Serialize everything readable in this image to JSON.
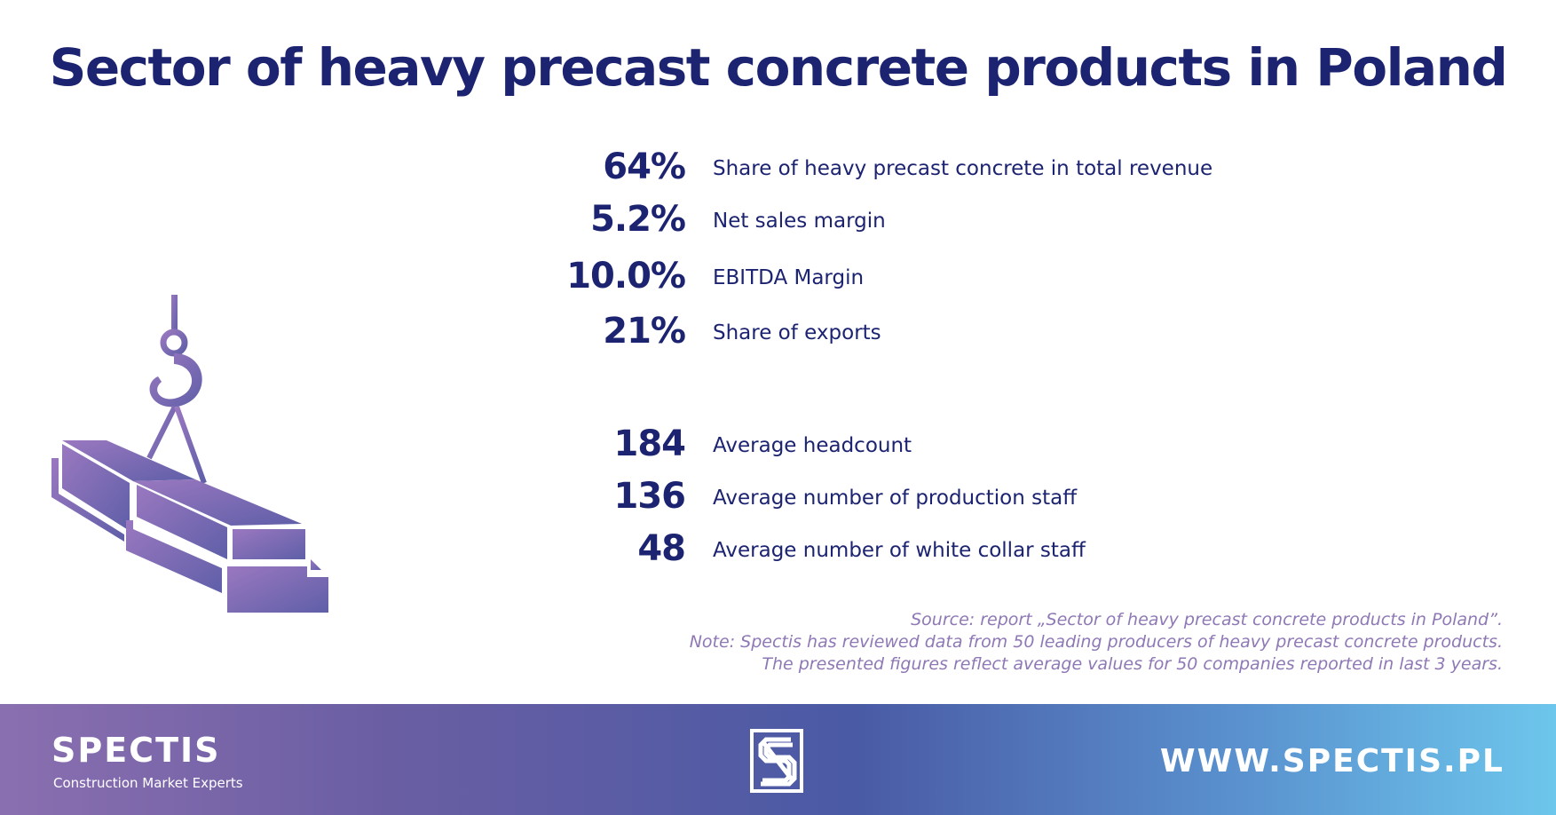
{
  "title": "Sector of heavy precast concrete products in Poland",
  "stats_financial": [
    {
      "value": "64%",
      "label": "Share of heavy precast concrete in total revenue"
    },
    {
      "value": "5.2%",
      "label": "Net sales margin"
    },
    {
      "value": "10.0%",
      "label": "EBITDA Margin"
    },
    {
      "value": "21%",
      "label": "Share of exports"
    }
  ],
  "stats_staff": [
    {
      "value": "184",
      "label": "Average headcount"
    },
    {
      "value": "136",
      "label": "Average number of production staff"
    },
    {
      "value": "48",
      "label": "Average number of white collar staff"
    }
  ],
  "source": {
    "line1": "Source: report „Sector of heavy precast concrete products in Poland”.",
    "line2": "Note: Spectis has reviewed data from 50 leading producers of heavy precast concrete products.",
    "line3": "The presented figures reflect average values for 50 companies reported in last 3 years."
  },
  "footer": {
    "brand_name": "SPECTIS",
    "brand_tagline": "Construction Market Experts",
    "website": "WWW.SPECTIS.PL"
  },
  "colors": {
    "title": "#1c2370",
    "source": "#8e78b5",
    "gradient_start": "#8a6fb0",
    "gradient_end": "#6dc6ec"
  },
  "icons": {
    "illustration": "crane-hook-concrete-beam-icon",
    "footer_logo": "spectis-s-logo-icon"
  }
}
